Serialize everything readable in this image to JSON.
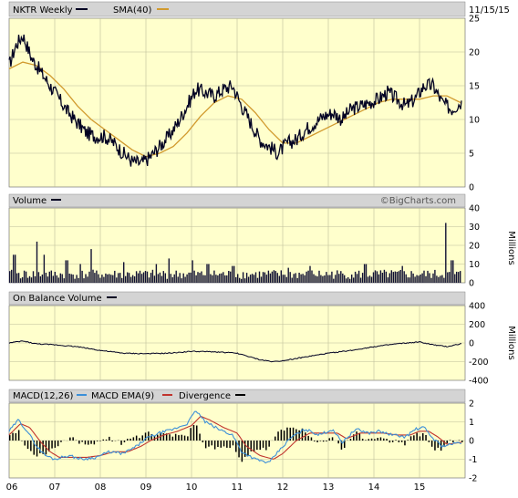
{
  "header": {
    "symbol_label": "NKTR Weekly",
    "sma_label": "SMA(40)",
    "date": "11/15/15"
  },
  "colors": {
    "plot_bg": "#ffffcc",
    "header_bg": "#d4d4d4",
    "grid": "#bdbd9a",
    "price": "#000022",
    "sma": "#d19a2e",
    "volume": "#111133",
    "macd": "#3c8fd8",
    "ema": "#c0342e",
    "divergence": "#000000"
  },
  "watermark": "©BigCharts.com",
  "chart_data": [
    {
      "type": "line",
      "name": "price",
      "x": [
        "06",
        "07",
        "08",
        "09",
        "10",
        "11",
        "12",
        "13",
        "14",
        "15"
      ],
      "ylim": [
        0,
        25
      ],
      "yticks": [
        0,
        5,
        10,
        15,
        20,
        25
      ],
      "series": [
        {
          "name": "NKTR Weekly",
          "points": [
            [
              2006.0,
              18
            ],
            [
              2006.15,
              21
            ],
            [
              2006.3,
              22.5
            ],
            [
              2006.5,
              19
            ],
            [
              2006.7,
              17
            ],
            [
              2006.9,
              15
            ],
            [
              2007.1,
              13
            ],
            [
              2007.3,
              11
            ],
            [
              2007.5,
              9.5
            ],
            [
              2007.7,
              8
            ],
            [
              2007.9,
              7.5
            ],
            [
              2008.1,
              7.5
            ],
            [
              2008.3,
              6.5
            ],
            [
              2008.5,
              5
            ],
            [
              2008.7,
              3.8
            ],
            [
              2008.9,
              3.5
            ],
            [
              2009.1,
              4.5
            ],
            [
              2009.3,
              6
            ],
            [
              2009.5,
              7.5
            ],
            [
              2009.7,
              9.5
            ],
            [
              2009.9,
              12
            ],
            [
              2010.1,
              14.5
            ],
            [
              2010.3,
              14
            ],
            [
              2010.5,
              13.5
            ],
            [
              2010.7,
              14.5
            ],
            [
              2010.9,
              15
            ],
            [
              2011.1,
              12
            ],
            [
              2011.3,
              9.5
            ],
            [
              2011.5,
              7
            ],
            [
              2011.7,
              6
            ],
            [
              2011.9,
              5
            ],
            [
              2012.1,
              6.5
            ],
            [
              2012.3,
              7
            ],
            [
              2012.5,
              8.5
            ],
            [
              2012.7,
              9.5
            ],
            [
              2012.9,
              10.5
            ],
            [
              2013.1,
              11
            ],
            [
              2013.3,
              10
            ],
            [
              2013.5,
              11.5
            ],
            [
              2013.7,
              12
            ],
            [
              2013.9,
              12.5
            ],
            [
              2014.1,
              13
            ],
            [
              2014.3,
              14
            ],
            [
              2014.5,
              13
            ],
            [
              2014.7,
              12
            ],
            [
              2014.9,
              13
            ],
            [
              2015.1,
              15
            ],
            [
              2015.3,
              15
            ],
            [
              2015.5,
              12.5
            ],
            [
              2015.7,
              11.5
            ],
            [
              2015.9,
              12.5
            ]
          ]
        },
        {
          "name": "SMA(40)",
          "points": [
            [
              2006.0,
              17.5
            ],
            [
              2006.3,
              18.5
            ],
            [
              2006.6,
              18
            ],
            [
              2006.9,
              16.5
            ],
            [
              2007.2,
              14.5
            ],
            [
              2007.5,
              12
            ],
            [
              2007.8,
              10
            ],
            [
              2008.1,
              8.5
            ],
            [
              2008.4,
              7
            ],
            [
              2008.7,
              5.5
            ],
            [
              2009.0,
              4.5
            ],
            [
              2009.3,
              5
            ],
            [
              2009.6,
              6
            ],
            [
              2009.9,
              8
            ],
            [
              2010.2,
              10.5
            ],
            [
              2010.5,
              12.5
            ],
            [
              2010.8,
              13.5
            ],
            [
              2011.1,
              13
            ],
            [
              2011.4,
              11
            ],
            [
              2011.7,
              8.5
            ],
            [
              2012.0,
              6.5
            ],
            [
              2012.3,
              6.5
            ],
            [
              2012.6,
              7.5
            ],
            [
              2012.9,
              8.5
            ],
            [
              2013.2,
              9.5
            ],
            [
              2013.5,
              10.5
            ],
            [
              2013.8,
              11.5
            ],
            [
              2014.1,
              12.5
            ],
            [
              2014.4,
              13
            ],
            [
              2014.7,
              13
            ],
            [
              2015.0,
              13
            ],
            [
              2015.3,
              13.5
            ],
            [
              2015.6,
              13.5
            ],
            [
              2015.9,
              12.5
            ]
          ]
        }
      ]
    },
    {
      "type": "bar",
      "name": "volume",
      "title": "Volume",
      "ylabel": "Millions",
      "ylim": [
        0,
        40
      ],
      "yticks": [
        0,
        10,
        20,
        30,
        40
      ],
      "spikes": [
        [
          2006.1,
          15
        ],
        [
          2006.6,
          22
        ],
        [
          2006.75,
          15
        ],
        [
          2007.25,
          12
        ],
        [
          2007.55,
          10
        ],
        [
          2007.8,
          18
        ],
        [
          2008.5,
          11
        ],
        [
          2009.2,
          10
        ],
        [
          2009.5,
          13
        ],
        [
          2010.0,
          12
        ],
        [
          2010.35,
          10
        ],
        [
          2010.9,
          9
        ],
        [
          2012.1,
          8
        ],
        [
          2012.6,
          9
        ],
        [
          2013.8,
          10
        ],
        [
          2014.6,
          9
        ],
        [
          2015.55,
          32
        ],
        [
          2015.7,
          12
        ]
      ]
    },
    {
      "type": "line",
      "name": "obv",
      "title": "On Balance Volume",
      "ylabel": "Millions",
      "ylim": [
        -400,
        400
      ],
      "yticks": [
        -400,
        -200,
        0,
        200,
        400
      ],
      "points": [
        [
          2006.0,
          0
        ],
        [
          2006.3,
          20
        ],
        [
          2006.6,
          -10
        ],
        [
          2007.0,
          -20
        ],
        [
          2007.5,
          -40
        ],
        [
          2008.0,
          -80
        ],
        [
          2008.5,
          -110
        ],
        [
          2009.0,
          -115
        ],
        [
          2009.5,
          -110
        ],
        [
          2010.0,
          -90
        ],
        [
          2010.5,
          -95
        ],
        [
          2011.0,
          -110
        ],
        [
          2011.5,
          -180
        ],
        [
          2011.8,
          -200
        ],
        [
          2012.0,
          -190
        ],
        [
          2012.5,
          -150
        ],
        [
          2013.0,
          -110
        ],
        [
          2013.5,
          -80
        ],
        [
          2014.0,
          -40
        ],
        [
          2014.5,
          -10
        ],
        [
          2015.0,
          10
        ],
        [
          2015.3,
          -20
        ],
        [
          2015.6,
          -40
        ],
        [
          2015.9,
          -10
        ]
      ]
    },
    {
      "type": "line",
      "name": "macd",
      "title": "MACD(12,26)",
      "legend": [
        "MACD(12,26)",
        "MACD EMA(9)",
        "Divergence"
      ],
      "ylim": [
        -2,
        2
      ],
      "yticks": [
        -2,
        -1,
        0,
        1,
        2
      ],
      "macd_points": [
        [
          2006.0,
          0.5
        ],
        [
          2006.2,
          1.1
        ],
        [
          2006.4,
          0.5
        ],
        [
          2006.6,
          -0.3
        ],
        [
          2006.8,
          -0.8
        ],
        [
          2007.0,
          -1.0
        ],
        [
          2007.3,
          -0.8
        ],
        [
          2007.6,
          -1.0
        ],
        [
          2007.9,
          -0.9
        ],
        [
          2008.2,
          -0.6
        ],
        [
          2008.5,
          -0.7
        ],
        [
          2008.8,
          -0.3
        ],
        [
          2009.0,
          0.1
        ],
        [
          2009.3,
          0.4
        ],
        [
          2009.6,
          0.6
        ],
        [
          2009.9,
          0.9
        ],
        [
          2010.1,
          1.6
        ],
        [
          2010.3,
          1.0
        ],
        [
          2010.6,
          0.6
        ],
        [
          2010.9,
          0.3
        ],
        [
          2011.1,
          -0.6
        ],
        [
          2011.4,
          -1.0
        ],
        [
          2011.7,
          -1.2
        ],
        [
          2011.9,
          -0.6
        ],
        [
          2012.2,
          0.2
        ],
        [
          2012.5,
          0.6
        ],
        [
          2012.8,
          0.3
        ],
        [
          2013.1,
          0.6
        ],
        [
          2013.3,
          -0.1
        ],
        [
          2013.6,
          0.6
        ],
        [
          2013.9,
          0.4
        ],
        [
          2014.1,
          0.5
        ],
        [
          2014.4,
          0.3
        ],
        [
          2014.7,
          0.2
        ],
        [
          2014.9,
          0.6
        ],
        [
          2015.1,
          0.7
        ],
        [
          2015.3,
          0.1
        ],
        [
          2015.5,
          -0.3
        ],
        [
          2015.7,
          -0.2
        ],
        [
          2015.9,
          -0.1
        ]
      ],
      "ema_points": [
        [
          2006.0,
          0.3
        ],
        [
          2006.25,
          0.9
        ],
        [
          2006.45,
          0.7
        ],
        [
          2006.7,
          -0.1
        ],
        [
          2006.9,
          -0.6
        ],
        [
          2007.1,
          -0.9
        ],
        [
          2007.4,
          -0.9
        ],
        [
          2007.7,
          -0.9
        ],
        [
          2008.0,
          -0.8
        ],
        [
          2008.3,
          -0.6
        ],
        [
          2008.6,
          -0.6
        ],
        [
          2008.9,
          -0.3
        ],
        [
          2009.1,
          0.0
        ],
        [
          2009.4,
          0.3
        ],
        [
          2009.7,
          0.5
        ],
        [
          2010.0,
          0.8
        ],
        [
          2010.2,
          1.3
        ],
        [
          2010.4,
          1.1
        ],
        [
          2010.7,
          0.7
        ],
        [
          2011.0,
          0.4
        ],
        [
          2011.2,
          -0.3
        ],
        [
          2011.5,
          -0.8
        ],
        [
          2011.8,
          -1.0
        ],
        [
          2012.0,
          -0.7
        ],
        [
          2012.3,
          0.0
        ],
        [
          2012.6,
          0.4
        ],
        [
          2012.9,
          0.4
        ],
        [
          2013.2,
          0.4
        ],
        [
          2013.4,
          0.1
        ],
        [
          2013.7,
          0.4
        ],
        [
          2014.0,
          0.4
        ],
        [
          2014.2,
          0.4
        ],
        [
          2014.5,
          0.3
        ],
        [
          2014.8,
          0.3
        ],
        [
          2015.0,
          0.5
        ],
        [
          2015.2,
          0.5
        ],
        [
          2015.4,
          0.2
        ],
        [
          2015.6,
          -0.2
        ],
        [
          2015.9,
          -0.1
        ]
      ]
    }
  ]
}
